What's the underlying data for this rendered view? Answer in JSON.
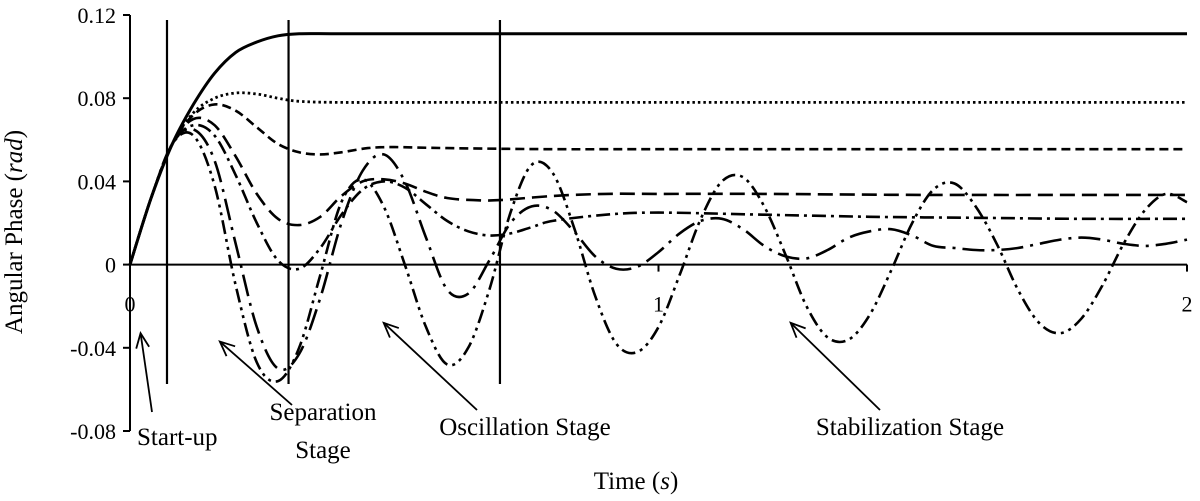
{
  "chart_data": {
    "type": "line",
    "title": "",
    "xlabel": "Time",
    "xlabel_unit": "s",
    "ylabel": "Angular  Phase",
    "ylabel_unit": "rad",
    "xlim": [
      0,
      2
    ],
    "ylim": [
      -0.08,
      0.12
    ],
    "xticks": [
      0,
      1,
      2
    ],
    "xtick_labels": [
      "0",
      "1",
      "2"
    ],
    "yticks": [
      0.12,
      0.08,
      0.04,
      0,
      -0.04,
      -0.08
    ],
    "ytick_labels": [
      "0.12",
      "0.08",
      "0.04",
      "0",
      "-0.04",
      "-0.08"
    ],
    "grid": false,
    "legend": "none",
    "stage_boundaries": [
      0.07,
      0.3,
      0.7
    ],
    "annotations": [
      {
        "text": "Start-up",
        "lines": [
          "Start-up"
        ],
        "arrow_tip": [
          0.02,
          -0.033
        ]
      },
      {
        "text": "Separation Stage",
        "lines": [
          "Separation",
          "Stage"
        ],
        "arrow_tip": [
          0.17,
          -0.037
        ]
      },
      {
        "text": "Oscillation  Stage",
        "lines": [
          "Oscillation  Stage"
        ],
        "arrow_tip": [
          0.48,
          -0.028
        ]
      },
      {
        "text": "Stabilization  Stage",
        "lines": [
          "Stabilization  Stage"
        ],
        "arrow_tip": [
          1.25,
          -0.028
        ]
      }
    ],
    "series": [
      {
        "style": "solid",
        "x": [
          0,
          0.04,
          0.08,
          0.12,
          0.16,
          0.2,
          0.24,
          0.28,
          0.32,
          0.4,
          0.6,
          1.0,
          1.5,
          2.0
        ],
        "y": [
          0,
          0.032,
          0.058,
          0.077,
          0.092,
          0.102,
          0.107,
          0.11,
          0.111,
          0.111,
          0.111,
          0.111,
          0.111,
          0.111
        ]
      },
      {
        "style": "dotted",
        "x": [
          0,
          0.04,
          0.08,
          0.12,
          0.16,
          0.2,
          0.24,
          0.28,
          0.32,
          0.4,
          0.6,
          1.0,
          1.5,
          2.0
        ],
        "y": [
          0,
          0.032,
          0.058,
          0.073,
          0.08,
          0.0825,
          0.082,
          0.08,
          0.0785,
          0.078,
          0.078,
          0.078,
          0.078,
          0.078
        ]
      },
      {
        "style": "dashed",
        "x": [
          0,
          0.04,
          0.08,
          0.12,
          0.16,
          0.2,
          0.24,
          0.28,
          0.32,
          0.36,
          0.4,
          0.45,
          0.5,
          0.6,
          0.8,
          1.0,
          1.5,
          2.0
        ],
        "y": [
          0,
          0.032,
          0.058,
          0.072,
          0.077,
          0.074,
          0.066,
          0.058,
          0.054,
          0.053,
          0.054,
          0.056,
          0.0565,
          0.056,
          0.0555,
          0.0555,
          0.0555,
          0.0555
        ]
      },
      {
        "style": "long-dash",
        "x": [
          0,
          0.04,
          0.08,
          0.12,
          0.16,
          0.2,
          0.24,
          0.28,
          0.32,
          0.36,
          0.4,
          0.44,
          0.48,
          0.52,
          0.56,
          0.6,
          0.65,
          0.7,
          0.8,
          0.9,
          1.0,
          1.2,
          1.5,
          2.0
        ],
        "y": [
          0,
          0.032,
          0.058,
          0.07,
          0.067,
          0.052,
          0.034,
          0.022,
          0.019,
          0.023,
          0.033,
          0.04,
          0.041,
          0.039,
          0.035,
          0.032,
          0.031,
          0.031,
          0.033,
          0.034,
          0.034,
          0.034,
          0.0335,
          0.0335
        ]
      },
      {
        "style": "dash-dot",
        "x": [
          0,
          0.04,
          0.08,
          0.12,
          0.16,
          0.2,
          0.24,
          0.28,
          0.32,
          0.36,
          0.4,
          0.44,
          0.48,
          0.52,
          0.56,
          0.6,
          0.64,
          0.68,
          0.72,
          0.76,
          0.8,
          0.9,
          1.0,
          1.2,
          1.4,
          1.6,
          1.8,
          2.0
        ],
        "y": [
          0,
          0.032,
          0.058,
          0.067,
          0.062,
          0.043,
          0.02,
          0.002,
          -0.002,
          0.008,
          0.024,
          0.036,
          0.04,
          0.037,
          0.029,
          0.021,
          0.016,
          0.014,
          0.015,
          0.018,
          0.021,
          0.024,
          0.025,
          0.024,
          0.023,
          0.0225,
          0.022,
          0.022
        ]
      },
      {
        "style": "long-dash-dot",
        "x": [
          0,
          0.04,
          0.08,
          0.12,
          0.16,
          0.2,
          0.24,
          0.28,
          0.32,
          0.36,
          0.4,
          0.44,
          0.48,
          0.52,
          0.56,
          0.6,
          0.64,
          0.68,
          0.72,
          0.76,
          0.8,
          0.84,
          0.88,
          0.92,
          0.96,
          1.0,
          1.04,
          1.08,
          1.12,
          1.16,
          1.2,
          1.24,
          1.28,
          1.32,
          1.36,
          1.4,
          1.44,
          1.48,
          1.52,
          1.56,
          1.6,
          1.64,
          1.68,
          1.72,
          1.76,
          1.8,
          1.84,
          1.88,
          1.92,
          1.96,
          2.0
        ],
        "y": [
          0,
          0.032,
          0.058,
          0.065,
          0.05,
          0.01,
          -0.03,
          -0.05,
          -0.043,
          -0.016,
          0.02,
          0.045,
          0.053,
          0.04,
          0.013,
          -0.012,
          -0.014,
          0.002,
          0.02,
          0.028,
          0.026,
          0.016,
          0.004,
          -0.002,
          -0.001,
          0.006,
          0.015,
          0.021,
          0.022,
          0.017,
          0.009,
          0.004,
          0.003,
          0.007,
          0.013,
          0.016,
          0.017,
          0.014,
          0.009,
          0.008,
          0.007,
          0.007,
          0.008,
          0.01,
          0.012,
          0.013,
          0.012,
          0.01,
          0.009,
          0.01,
          0.012
        ]
      },
      {
        "style": "dash-dot-dot",
        "x": [
          0,
          0.04,
          0.08,
          0.12,
          0.16,
          0.2,
          0.24,
          0.28,
          0.32,
          0.36,
          0.4,
          0.44,
          0.48,
          0.52,
          0.56,
          0.6,
          0.64,
          0.68,
          0.72,
          0.76,
          0.8,
          0.84,
          0.88,
          0.92,
          0.96,
          1.0,
          1.04,
          1.08,
          1.12,
          1.16,
          1.2,
          1.24,
          1.28,
          1.32,
          1.36,
          1.4,
          1.44,
          1.48,
          1.52,
          1.56,
          1.6,
          1.64,
          1.68,
          1.72,
          1.76,
          1.8,
          1.84,
          1.88,
          1.92,
          1.96,
          2.0
        ],
        "y": [
          0,
          0.032,
          0.058,
          0.062,
          0.038,
          -0.01,
          -0.047,
          -0.056,
          -0.04,
          -0.005,
          0.03,
          0.041,
          0.028,
          0.0,
          -0.03,
          -0.048,
          -0.04,
          -0.012,
          0.025,
          0.048,
          0.044,
          0.018,
          -0.015,
          -0.038,
          -0.042,
          -0.03,
          -0.005,
          0.022,
          0.04,
          0.042,
          0.028,
          0.005,
          -0.02,
          -0.035,
          -0.036,
          -0.024,
          -0.003,
          0.02,
          0.036,
          0.039,
          0.028,
          0.01,
          -0.012,
          -0.028,
          -0.033,
          -0.026,
          -0.01,
          0.01,
          0.026,
          0.034,
          0.03
        ]
      }
    ]
  }
}
